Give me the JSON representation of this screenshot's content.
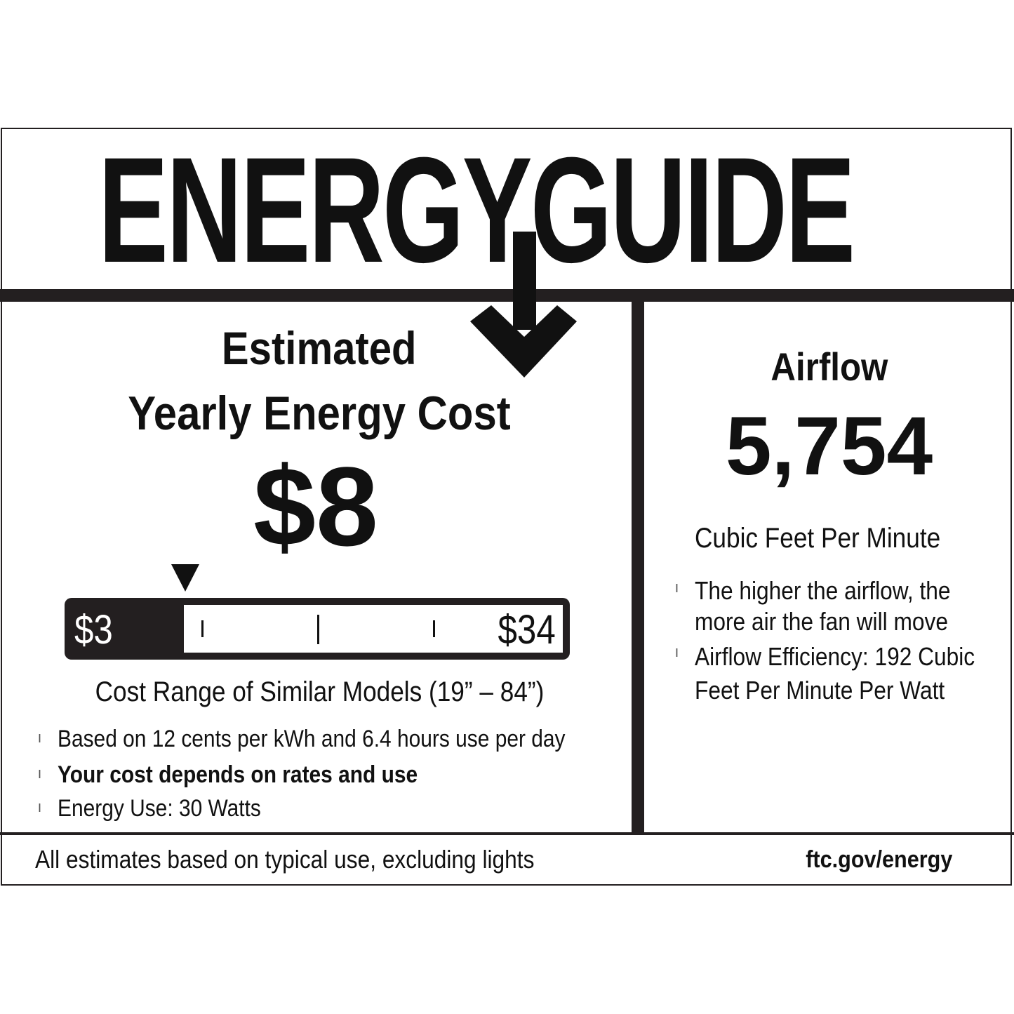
{
  "title": "ENERGYGUIDE",
  "cost": {
    "heading_line1": "Estimated",
    "heading_line2": "Yearly Energy Cost",
    "value": "$8",
    "range_min": "$3",
    "range_max": "$34",
    "indicator_value": 8,
    "range_label": "Cost Range of Similar Models (19” – 84”)",
    "bullets": [
      "Based on 12 cents per kWh and 6.4 hours use per day",
      "Your cost depends on rates and use",
      "Energy Use: 30 Watts"
    ]
  },
  "airflow": {
    "heading": "Airflow",
    "value": "5,754",
    "unit": "Cubic Feet Per Minute",
    "bullets": [
      "The higher the airflow, the more air the fan will move",
      "Airflow Efficiency: 192 Cubic Feet Per Minute Per Watt"
    ]
  },
  "footer": {
    "note": "All estimates based on typical use, excluding lights",
    "link": "ftc.gov/energy"
  },
  "colors": {
    "ink": "#231f20",
    "background": "#ffffff"
  }
}
